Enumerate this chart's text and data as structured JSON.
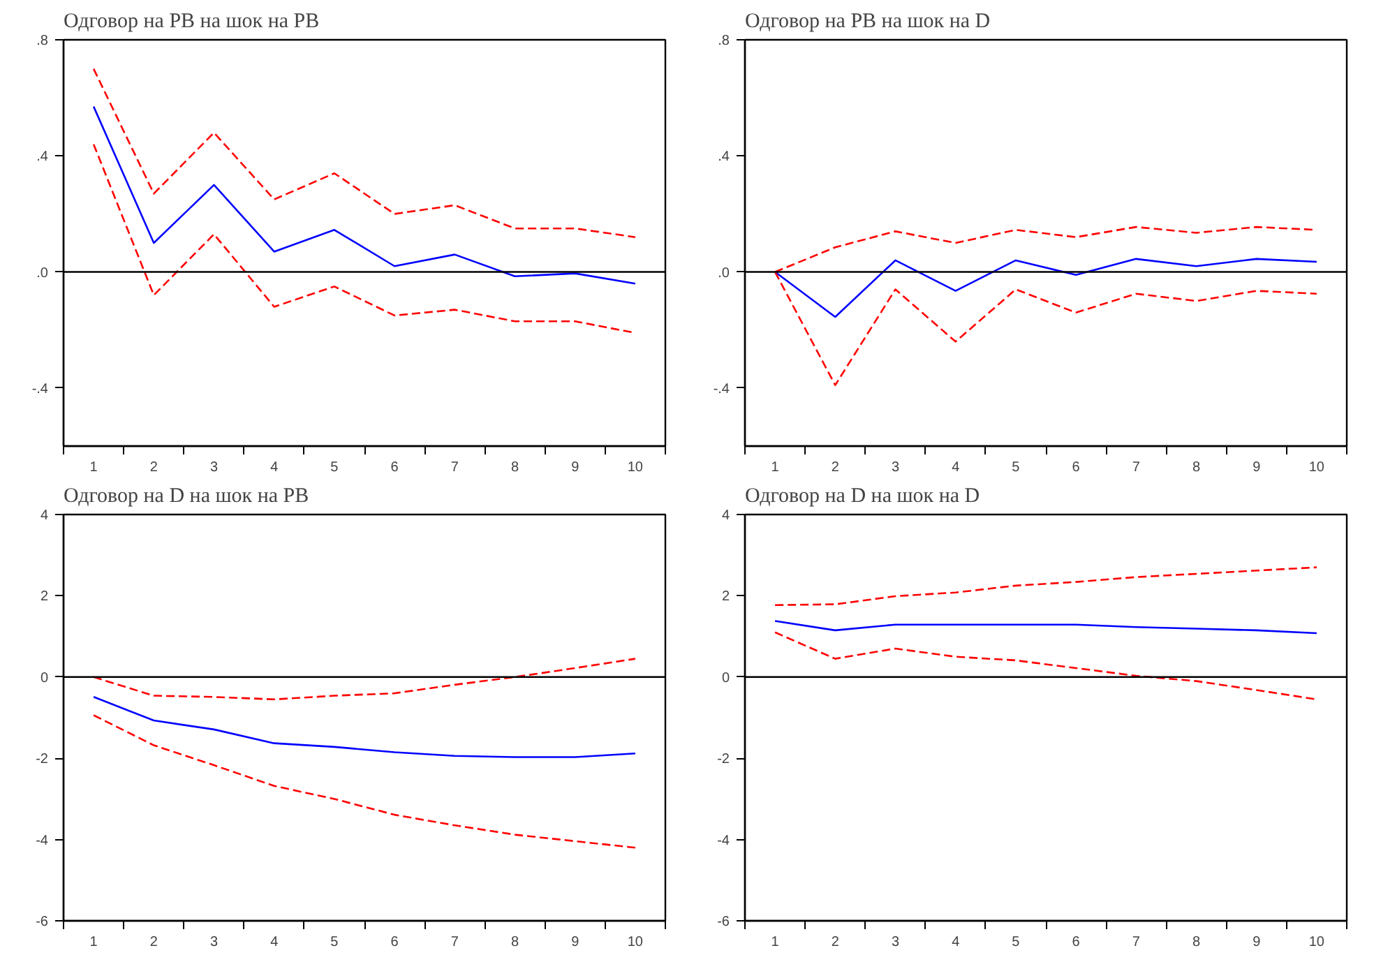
{
  "chart_data": [
    {
      "type": "line",
      "title": "Одговор на PB на шок на PB",
      "x": [
        1,
        2,
        3,
        4,
        5,
        6,
        7,
        8,
        9,
        10
      ],
      "xlim": [
        0.5,
        10.5
      ],
      "xticks": [
        {
          "value": 0.5,
          "label": null
        },
        1,
        {
          "value": 1.5,
          "label": null
        },
        2,
        {
          "value": 2.5,
          "label": null
        },
        3,
        {
          "value": 3.5,
          "label": null
        },
        4,
        {
          "value": 4.5,
          "label": null
        },
        5,
        {
          "value": 5.5,
          "label": null
        },
        6,
        {
          "value": 6.5,
          "label": null
        },
        7,
        {
          "value": 7.5,
          "label": null
        },
        8,
        {
          "value": 8.5,
          "label": null
        },
        9,
        {
          "value": 9.5,
          "label": null
        },
        10,
        {
          "value": 10.5,
          "label": null
        }
      ],
      "ylim": [
        -0.6,
        0.8
      ],
      "yticks": [
        {
          "value": -0.4,
          "label": "-.4"
        },
        {
          "value": 0,
          "label": ".0"
        },
        {
          "value": 0.4,
          "label": ".4"
        },
        {
          "value": 0.8,
          "label": ".8"
        }
      ],
      "ref_lines": [
        {
          "axis": "y",
          "value": 0,
          "color": "#000000"
        }
      ],
      "series": [
        {
          "color": "#ff0000",
          "line_style": "dashed",
          "values": [
            0.7,
            0.27,
            0.48,
            0.25,
            0.34,
            0.2,
            0.23,
            0.15,
            0.15,
            0.12
          ]
        },
        {
          "color": "#0000ff",
          "line_style": "solid",
          "values": [
            0.57,
            0.1,
            0.3,
            0.07,
            0.145,
            0.02,
            0.06,
            -0.015,
            -0.005,
            -0.04
          ]
        },
        {
          "color": "#ff0000",
          "line_style": "dashed",
          "values": [
            0.44,
            -0.08,
            0.13,
            -0.12,
            -0.05,
            -0.15,
            -0.13,
            -0.17,
            -0.17,
            -0.21
          ]
        }
      ]
    },
    {
      "type": "line",
      "title": "Одговор на PB на шок на D",
      "x": [
        1,
        2,
        3,
        4,
        5,
        6,
        7,
        8,
        9,
        10
      ],
      "xlim": [
        0.5,
        10.5
      ],
      "xticks": [
        {
          "value": 0.5,
          "label": null
        },
        1,
        {
          "value": 1.5,
          "label": null
        },
        2,
        {
          "value": 2.5,
          "label": null
        },
        3,
        {
          "value": 3.5,
          "label": null
        },
        4,
        {
          "value": 4.5,
          "label": null
        },
        5,
        {
          "value": 5.5,
          "label": null
        },
        6,
        {
          "value": 6.5,
          "label": null
        },
        7,
        {
          "value": 7.5,
          "label": null
        },
        8,
        {
          "value": 8.5,
          "label": null
        },
        9,
        {
          "value": 9.5,
          "label": null
        },
        10,
        {
          "value": 10.5,
          "label": null
        }
      ],
      "ylim": [
        -0.6,
        0.8
      ],
      "yticks": [
        {
          "value": -0.4,
          "label": "-.4"
        },
        {
          "value": 0,
          "label": ".0"
        },
        {
          "value": 0.4,
          "label": ".4"
        },
        {
          "value": 0.8,
          "label": ".8"
        }
      ],
      "ref_lines": [
        {
          "axis": "y",
          "value": 0,
          "color": "#000000"
        }
      ],
      "series": [
        {
          "color": "#ff0000",
          "line_style": "dashed",
          "values": [
            0,
            0.085,
            0.14,
            0.1,
            0.145,
            0.12,
            0.155,
            0.135,
            0.155,
            0.145
          ]
        },
        {
          "color": "#0000ff",
          "line_style": "solid",
          "values": [
            0,
            -0.155,
            0.04,
            -0.065,
            0.04,
            -0.01,
            0.045,
            0.02,
            0.045,
            0.035
          ]
        },
        {
          "color": "#ff0000",
          "line_style": "dashed",
          "values": [
            0,
            -0.39,
            -0.06,
            -0.24,
            -0.06,
            -0.14,
            -0.075,
            -0.1,
            -0.065,
            -0.075
          ]
        }
      ]
    },
    {
      "type": "line",
      "title": "Одговор на D на шок на PB",
      "x": [
        1,
        2,
        3,
        4,
        5,
        6,
        7,
        8,
        9,
        10
      ],
      "xlim": [
        0.5,
        10.5
      ],
      "xticks": [
        {
          "value": 0.5,
          "label": null
        },
        1,
        {
          "value": 1.5,
          "label": null
        },
        2,
        {
          "value": 2.5,
          "label": null
        },
        3,
        {
          "value": 3.5,
          "label": null
        },
        4,
        {
          "value": 4.5,
          "label": null
        },
        5,
        {
          "value": 5.5,
          "label": null
        },
        6,
        {
          "value": 6.5,
          "label": null
        },
        7,
        {
          "value": 7.5,
          "label": null
        },
        8,
        {
          "value": 8.5,
          "label": null
        },
        9,
        {
          "value": 9.5,
          "label": null
        },
        10,
        {
          "value": 10.5,
          "label": null
        }
      ],
      "ylim": [
        -6,
        4
      ],
      "yticks": [
        -6,
        -4,
        -2,
        0,
        2,
        4
      ],
      "ref_lines": [
        {
          "axis": "y",
          "value": 0,
          "color": "#000000"
        }
      ],
      "series": [
        {
          "color": "#ff0000",
          "line_style": "dashed",
          "values": [
            0,
            -0.46,
            -0.49,
            -0.55,
            -0.46,
            -0.4,
            -0.19,
            0.0,
            0.22,
            0.45
          ]
        },
        {
          "color": "#0000ff",
          "line_style": "solid",
          "values": [
            -0.49,
            -1.07,
            -1.29,
            -1.63,
            -1.72,
            -1.85,
            -1.94,
            -1.97,
            -1.97,
            -1.88
          ]
        },
        {
          "color": "#ff0000",
          "line_style": "dashed",
          "values": [
            -0.94,
            -1.68,
            -2.17,
            -2.68,
            -3.0,
            -3.39,
            -3.65,
            -3.88,
            -4.04,
            -4.2
          ]
        }
      ]
    },
    {
      "type": "line",
      "title": "Одговор на D на шок на D",
      "x": [
        1,
        2,
        3,
        4,
        5,
        6,
        7,
        8,
        9,
        10
      ],
      "xlim": [
        0.5,
        10.5
      ],
      "xticks": [
        {
          "value": 0.5,
          "label": null
        },
        1,
        {
          "value": 1.5,
          "label": null
        },
        2,
        {
          "value": 2.5,
          "label": null
        },
        3,
        {
          "value": 3.5,
          "label": null
        },
        4,
        {
          "value": 4.5,
          "label": null
        },
        5,
        {
          "value": 5.5,
          "label": null
        },
        6,
        {
          "value": 6.5,
          "label": null
        },
        7,
        {
          "value": 7.5,
          "label": null
        },
        8,
        {
          "value": 8.5,
          "label": null
        },
        9,
        {
          "value": 9.5,
          "label": null
        },
        10,
        {
          "value": 10.5,
          "label": null
        }
      ],
      "ylim": [
        -6,
        4
      ],
      "yticks": [
        -6,
        -4,
        -2,
        0,
        2,
        4
      ],
      "ref_lines": [
        {
          "axis": "y",
          "value": 0,
          "color": "#000000"
        }
      ],
      "series": [
        {
          "color": "#ff0000",
          "line_style": "dashed",
          "values": [
            1.77,
            1.79,
            1.99,
            2.08,
            2.25,
            2.34,
            2.46,
            2.54,
            2.62,
            2.7
          ]
        },
        {
          "color": "#0000ff",
          "line_style": "solid",
          "values": [
            1.38,
            1.15,
            1.29,
            1.29,
            1.29,
            1.29,
            1.23,
            1.19,
            1.15,
            1.08
          ]
        },
        {
          "color": "#ff0000",
          "line_style": "dashed",
          "values": [
            1.1,
            0.45,
            0.7,
            0.5,
            0.41,
            0.22,
            0.03,
            -0.1,
            -0.32,
            -0.55
          ]
        }
      ]
    }
  ]
}
